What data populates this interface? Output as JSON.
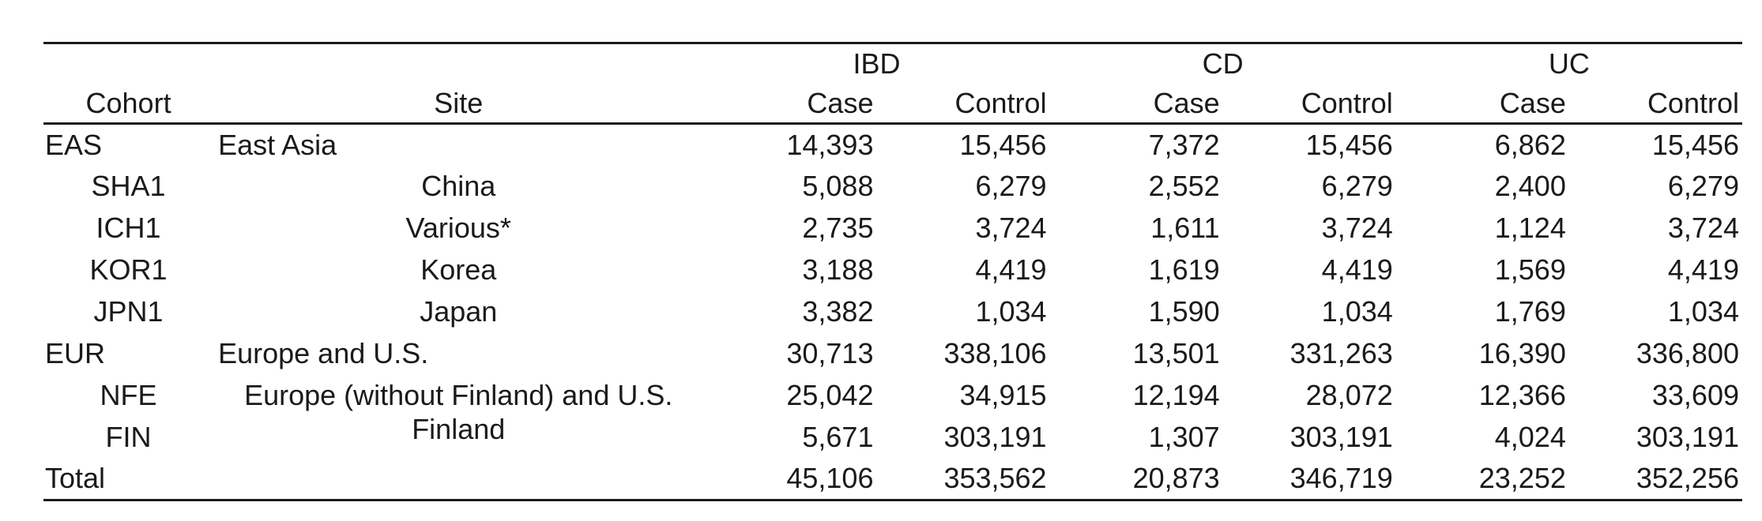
{
  "page": {
    "background_color": "#ffffff",
    "text_color": "#1a1a1a",
    "rule_color": "#1a1a1a"
  },
  "table": {
    "group_headers": {
      "ibd": "IBD",
      "cd": "CD",
      "uc": "UC"
    },
    "column_headers": {
      "cohort": "Cohort",
      "site": "Site",
      "case": "Case",
      "control": "Control"
    },
    "rows": [
      {
        "cohort": "EAS",
        "site": "East Asia",
        "ibd_case": "14,393",
        "ibd_control": "15,456",
        "cd_case": "7,372",
        "cd_control": "15,456",
        "uc_case": "6,862",
        "uc_control": "15,456"
      },
      {
        "cohort": "SHA1",
        "site": "China",
        "ibd_case": "5,088",
        "ibd_control": "6,279",
        "cd_case": "2,552",
        "cd_control": "6,279",
        "uc_case": "2,400",
        "uc_control": "6,279"
      },
      {
        "cohort": "ICH1",
        "site": "Various*",
        "ibd_case": "2,735",
        "ibd_control": "3,724",
        "cd_case": "1,611",
        "cd_control": "3,724",
        "uc_case": "1,124",
        "uc_control": "3,724"
      },
      {
        "cohort": "KOR1",
        "site": "Korea",
        "ibd_case": "3,188",
        "ibd_control": "4,419",
        "cd_case": "1,619",
        "cd_control": "4,419",
        "uc_case": "1,569",
        "uc_control": "4,419"
      },
      {
        "cohort": "JPN1",
        "site": "Japan",
        "ibd_case": "3,382",
        "ibd_control": "1,034",
        "cd_case": "1,590",
        "cd_control": "1,034",
        "uc_case": "1,769",
        "uc_control": "1,034"
      },
      {
        "cohort": "EUR",
        "site": "Europe and U.S.",
        "ibd_case": "30,713",
        "ibd_control": "338,106",
        "cd_case": "13,501",
        "cd_control": "331,263",
        "uc_case": "16,390",
        "uc_control": "336,800"
      },
      {
        "cohort": "NFE",
        "site": "Europe (without Finland) and U.S.",
        "ibd_case": "25,042",
        "ibd_control": "34,915",
        "cd_case": "12,194",
        "cd_control": "28,072",
        "uc_case": "12,366",
        "uc_control": "33,609"
      },
      {
        "cohort": "FIN",
        "site": "Finland",
        "ibd_case": "5,671",
        "ibd_control": "303,191",
        "cd_case": "1,307",
        "cd_control": "303,191",
        "uc_case": "4,024",
        "uc_control": "303,191"
      },
      {
        "cohort": "Total",
        "site": "",
        "ibd_case": "45,106",
        "ibd_control": "353,562",
        "cd_case": "20,873",
        "cd_control": "346,719",
        "uc_case": "23,252",
        "uc_control": "352,256"
      }
    ]
  }
}
